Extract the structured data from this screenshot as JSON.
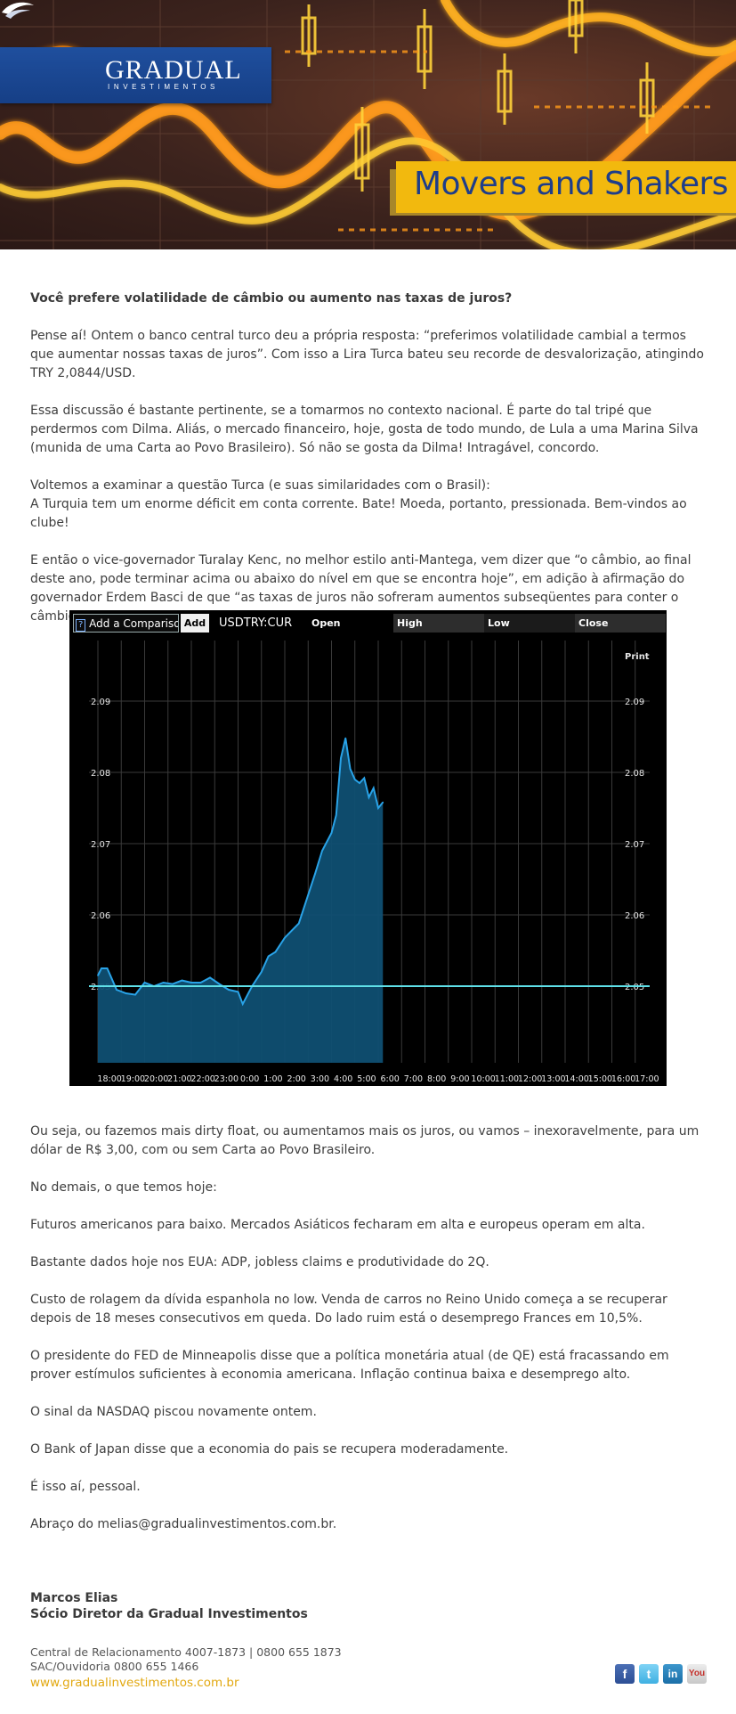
{
  "header": {
    "logo_name": "GRADUAL",
    "logo_sub": "INVESTIMENTOS",
    "newsletter_title": "Movers and Shakers"
  },
  "article": {
    "lead": "Você prefere volatilidade de câmbio ou aumento nas taxas de juros?",
    "p1": "Pense aí! Ontem o banco central turco deu a própria resposta: “preferimos volatilidade cambial a termos que aumentar nossas taxas de juros”. Com isso a Lira Turca bateu seu recorde de desvalorização, atingindo TRY 2,0844/USD.",
    "p2": "Essa discussão é bastante pertinente, se a tomarmos no contexto nacional. É parte do tal tripé que perdermos com Dilma. Aliás, o mercado financeiro, hoje, gosta de todo mundo, de Lula a uma Marina Silva (munida de uma Carta ao Povo Brasileiro). Só não se gosta da Dilma! Intragável, concordo.",
    "p3a": "Voltemos a examinar a questão Turca (e suas similaridades com o Brasil):",
    "p3b": "A Turquia tem um enorme déficit em conta corrente. Bate! Moeda, portanto, pressionada. Bem-vindos ao clube!",
    "p4": "E então o vice-governador Turalay Kenc, no melhor estilo anti-Mantega, vem dizer que “o câmbio, ao final deste ano, pode terminar acima ou abaixo do nível em que se encontra hoje”, em adição à afirmação do governador Erdem Basci de que “as taxas de juros não sofreram aumentos subseqüentes para conter o câmbio”. Resultado?",
    "p5": "Ou seja, ou fazemos mais dirty float, ou aumentamos mais os juros, ou vamos – inexoravelmente, para um dólar de R$ 3,00, com ou sem Carta ao Povo Brasileiro.",
    "p6": "No demais, o que temos hoje:",
    "p7": "Futuros americanos para baixo. Mercados Asiáticos fecharam em alta e europeus operam em alta.",
    "p8": "Bastante dados hoje nos EUA: ADP, jobless claims e produtividade do 2Q.",
    "p9": "Custo de rolagem da dívida espanhola no low. Venda de carros no Reino Unido começa a se recuperar depois de 18 meses consecutivos em queda. Do lado ruim está o desemprego Frances em 10,5%.",
    "p10": "O presidente do FED de Minneapolis disse que a política monetária atual (de QE) está fracassando em prover estímulos suficientes à economia americana. Inflação continua baixa e desemprego alto.",
    "p11": "O sinal da NASDAQ piscou novamente ontem.",
    "p12": "O Bank of Japan disse que a economia do pais se recupera moderadamente.",
    "p13": "É isso aí, pessoal.",
    "p14": "Abraço do melias@gradualinvestimentos.com.br."
  },
  "chart_toolbar": {
    "help": "?",
    "compare": "Add a Comparison",
    "add": "Add",
    "symbol": "USDTRY:CUR",
    "open": "Open",
    "high": "High",
    "low": "Low",
    "close": "Close",
    "print": "Print"
  },
  "chart_data": {
    "type": "area",
    "title": "",
    "xlabel": "",
    "ylabel": "",
    "ylim": [
      2.0385,
      2.0985
    ],
    "y_ticks": [
      2.05,
      2.06,
      2.07,
      2.08,
      2.09
    ],
    "x_ticks": [
      "18:00",
      "19:00",
      "20:00",
      "21:00",
      "22:00",
      "23:00",
      "0:00",
      "1:00",
      "2:00",
      "3:00",
      "4:00",
      "5:00",
      "6:00",
      "7:00",
      "8:00",
      "9:00",
      "10:00",
      "11:00",
      "12:00",
      "13:00",
      "14:00",
      "15:00",
      "16:00",
      "17:00"
    ],
    "reference_line": 2.05,
    "series": [
      {
        "x": [
          0,
          0.15,
          0.4,
          0.8,
          1.2,
          1.6,
          2.0,
          2.4,
          2.8,
          3.2,
          3.6,
          4.0,
          4.4,
          4.8,
          5.2,
          5.6,
          6.0,
          6.2,
          6.6,
          7.0,
          7.3,
          7.6,
          8.0,
          8.3,
          8.6,
          9.0,
          9.3,
          9.6,
          10.0,
          10.2,
          10.4,
          10.6,
          10.8,
          11.0,
          11.2,
          11.4,
          11.6,
          11.8,
          12.0,
          12.2
        ],
        "y": [
          2.0515,
          2.0525,
          2.0525,
          2.0495,
          2.049,
          2.0488,
          2.0505,
          2.05,
          2.0505,
          2.0503,
          2.0508,
          2.0505,
          2.0505,
          2.0512,
          2.0503,
          2.0495,
          2.0492,
          2.0475,
          2.05,
          2.052,
          2.0542,
          2.0548,
          2.0568,
          2.0578,
          2.0588,
          2.0628,
          2.0658,
          2.069,
          2.0715,
          2.074,
          2.082,
          2.0848,
          2.0805,
          2.079,
          2.0785,
          2.0792,
          2.0765,
          2.0778,
          2.075,
          2.0758
        ]
      }
    ]
  },
  "signature": {
    "name": "Marcos Elias",
    "role": "Sócio Diretor da Gradual Investimentos"
  },
  "footer": {
    "line1": "Central de Relacionamento 4007-1873 | 0800 655 1873",
    "line2": "SAC/Ouvidoria 0800 655 1466",
    "url": "www.gradualinvestimentos.com.br",
    "social_icons": [
      "facebook-icon",
      "twitter-icon",
      "linkedin-icon",
      "youtube-icon"
    ]
  }
}
